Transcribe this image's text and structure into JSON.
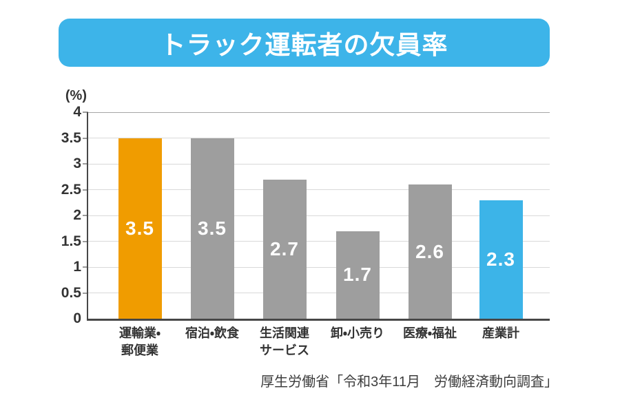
{
  "title": "トラック運転者の欠員率",
  "y_axis": {
    "unit": "(%)",
    "ticks": [
      "4",
      "3.5",
      "3",
      "2.5",
      "2",
      "1.5",
      "1",
      "0.5",
      "0"
    ],
    "max": 4
  },
  "chart_data": {
    "type": "bar",
    "title": "トラック運転者の欠員率",
    "xlabel": "",
    "ylabel": "(%)",
    "ylim": [
      0,
      4
    ],
    "grid": true,
    "legend": false,
    "categories": [
      "運輸業・郵便業",
      "宿泊・飲食",
      "生活関連サービス",
      "卸・小売り",
      "医療・福祉",
      "産業計"
    ],
    "values": [
      3.5,
      3.5,
      2.7,
      1.7,
      2.6,
      2.3
    ],
    "bars": [
      {
        "label_lines": [
          "運輸業・",
          "郵便業"
        ],
        "value": 3.5,
        "display": "3.5",
        "color": "#F09C00"
      },
      {
        "label_lines": [
          "宿泊・飲食"
        ],
        "value": 3.5,
        "display": "3.5",
        "color": "#9E9E9E"
      },
      {
        "label_lines": [
          "生活関連",
          "サービス"
        ],
        "value": 2.7,
        "display": "2.7",
        "color": "#9E9E9E"
      },
      {
        "label_lines": [
          "卸・小売り"
        ],
        "value": 1.7,
        "display": "1.7",
        "color": "#9E9E9E"
      },
      {
        "label_lines": [
          "医療・福祉"
        ],
        "value": 2.6,
        "display": "2.6",
        "color": "#9E9E9E"
      },
      {
        "label_lines": [
          "産業計"
        ],
        "value": 2.3,
        "display": "2.3",
        "color": "#3CB4E8"
      }
    ]
  },
  "source": "厚生労働省「令和3年11月　労働経済動向調査」",
  "colors": {
    "banner_blue": "#3DB4E9",
    "accent_orange": "#F09C00",
    "accent_blue": "#3CB4E8",
    "bar_gray": "#9E9E9E",
    "axis": "#474747",
    "grid": "#D9D9D9",
    "grid_top": "#A6A6A6",
    "tick": "#9B9B9B"
  }
}
